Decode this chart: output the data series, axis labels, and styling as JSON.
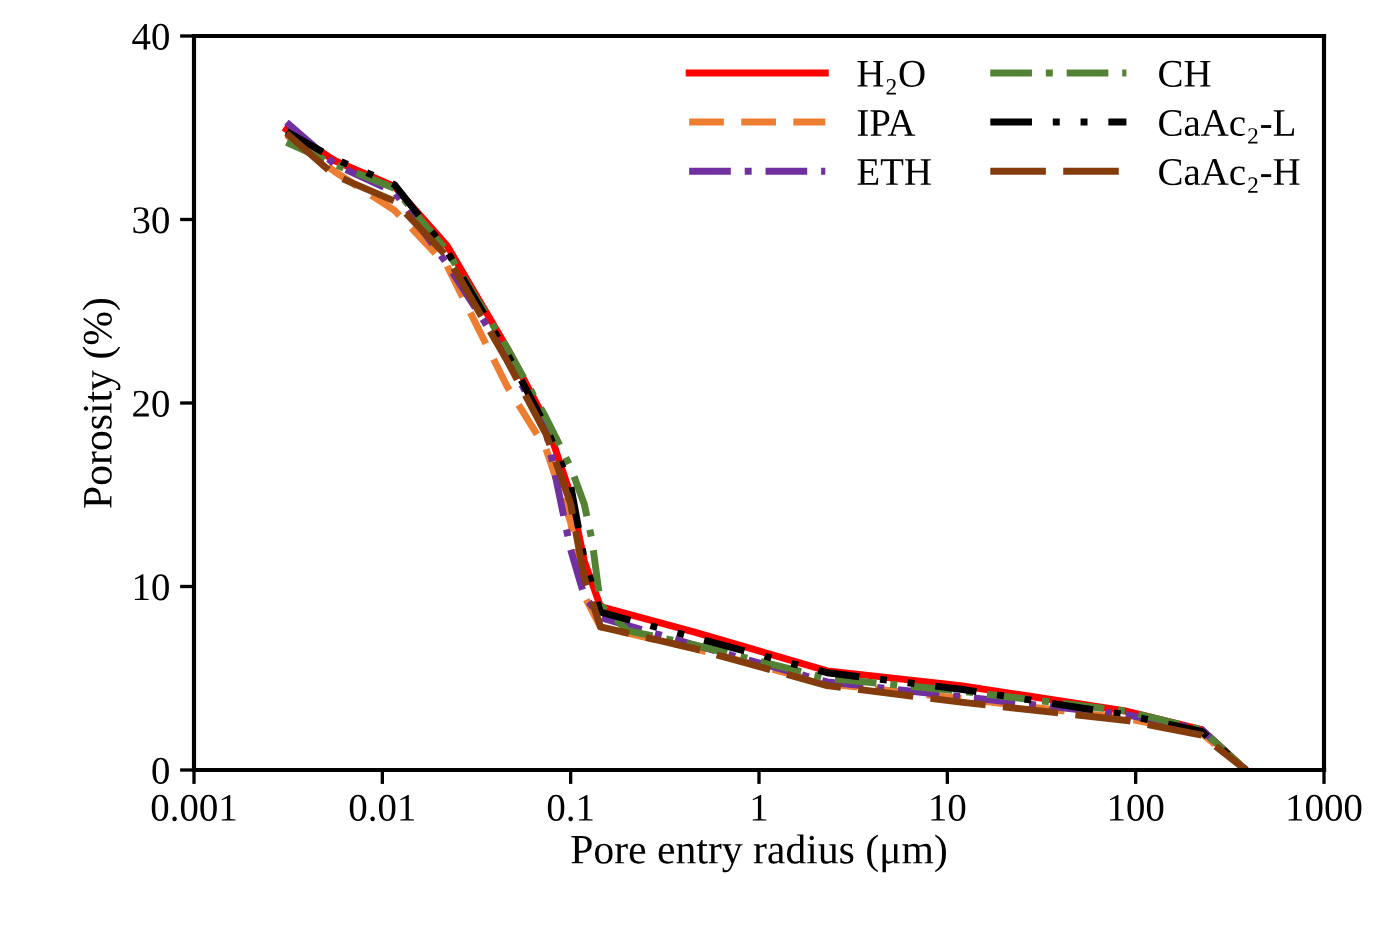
{
  "chart_data": {
    "type": "line",
    "xlabel": "Pore entry radius (μm)",
    "ylabel": "Porosity (%)",
    "log": "x",
    "xlim": [
      0.001,
      1000
    ],
    "xticks": [
      0.001,
      0.01,
      0.1,
      1,
      10,
      100,
      1000
    ],
    "ylim": [
      0,
      40
    ],
    "yticks": [
      0,
      10,
      20,
      30,
      40
    ],
    "grid": false,
    "legend": "top right",
    "marker": "none",
    "series": [
      {
        "name": "H₂O",
        "color": "#ff0000",
        "line_style": "solid",
        "x": [
          0.0031,
          0.0056,
          0.0116,
          0.022,
          0.046,
          0.074,
          0.1,
          0.118,
          0.144,
          0.46,
          2.3,
          11.8,
          90,
          224,
          385
        ],
        "values": [
          34.9,
          33.2,
          31.8,
          28.6,
          23.0,
          19.0,
          15.0,
          11.4,
          8.9,
          7.5,
          5.4,
          4.6,
          3.2,
          2.2,
          0
        ]
      },
      {
        "name": "IPA",
        "color": "#ed7d31",
        "line_style": "dashed",
        "x": [
          0.0031,
          0.0056,
          0.0116,
          0.022,
          0.046,
          0.074,
          0.1,
          0.118,
          0.144,
          0.46,
          2.3,
          11.8,
          90,
          224,
          385
        ],
        "values": [
          34.6,
          32.6,
          30.5,
          27.5,
          20.9,
          17.5,
          13.5,
          9.5,
          7.8,
          6.6,
          4.7,
          3.9,
          2.8,
          2.0,
          0
        ]
      },
      {
        "name": "ETH",
        "color": "#7030a0",
        "line_style": "dashdot",
        "x": [
          0.0031,
          0.0056,
          0.0116,
          0.022,
          0.046,
          0.074,
          0.1,
          0.118,
          0.144,
          0.46,
          2.3,
          11.8,
          90,
          224,
          385
        ],
        "values": [
          35.3,
          33.0,
          31.5,
          27.6,
          22.5,
          18.5,
          12.0,
          9.5,
          8.3,
          6.8,
          4.8,
          4.0,
          3.0,
          2.2,
          0
        ]
      },
      {
        "name": "CH",
        "color": "#548235",
        "line_style": "dashdot",
        "x": [
          0.0031,
          0.0056,
          0.0116,
          0.022,
          0.046,
          0.074,
          0.1,
          0.118,
          0.13,
          0.144,
          0.2,
          0.46,
          2.3,
          11.8,
          90,
          224,
          385
        ],
        "values": [
          34.2,
          33.0,
          31.7,
          28.3,
          23.0,
          19.2,
          16.5,
          14.5,
          12.5,
          9.0,
          7.6,
          6.8,
          5.0,
          4.3,
          3.2,
          2.2,
          0
        ]
      },
      {
        "name": "CaAc₂-L",
        "color": "#000000",
        "line_style": "dashdotdot",
        "x": [
          0.0031,
          0.0056,
          0.0116,
          0.022,
          0.046,
          0.074,
          0.1,
          0.118,
          0.144,
          0.46,
          2.3,
          11.8,
          90,
          224,
          385
        ],
        "values": [
          34.8,
          33.3,
          31.9,
          28.3,
          22.7,
          18.7,
          15.5,
          11.5,
          8.6,
          7.2,
          5.3,
          4.4,
          3.0,
          2.1,
          0
        ]
      },
      {
        "name": "CaAc₂-H",
        "color": "#843c0c",
        "line_style": "longdash",
        "x": [
          0.0031,
          0.0056,
          0.0116,
          0.022,
          0.046,
          0.074,
          0.1,
          0.118,
          0.144,
          0.46,
          2.3,
          11.8,
          90,
          224,
          385
        ],
        "values": [
          34.7,
          32.4,
          31.0,
          28.0,
          22.3,
          18.3,
          14.5,
          10.5,
          7.8,
          6.6,
          4.6,
          3.7,
          2.7,
          1.9,
          0
        ]
      }
    ]
  }
}
